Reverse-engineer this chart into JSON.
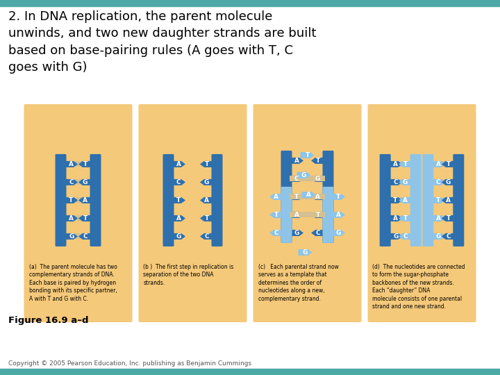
{
  "title": "2. In DNA replication, the parent molecule\nunwinds, and two new daughter strands are built\nbased on base-pairing rules (A goes with T, C\ngoes with G)",
  "figure_label": "Figure 16.9 a–d",
  "copyright": "Copyright © 2005 Pearson Education, Inc. publishing as Benjamin Cummings",
  "top_bar_color": "#4fa8a8",
  "bottom_bar_color": "#4fa8a8",
  "bg_color": "#ffffff",
  "panel_bg": "#f5c97a",
  "dna_dark": "#2e6fad",
  "dna_light": "#8ec4e8",
  "rung_color": "#d4c090",
  "bases_left": [
    "A",
    "C",
    "T",
    "A",
    "G"
  ],
  "bases_right": [
    "T",
    "G",
    "A",
    "T",
    "C"
  ],
  "captions": [
    "(a)  The parent molecule has two\ncomplementary strands of DNA.\nEach base is paired by hydrogen\nbonding with its specific partner,\nA with T and G with C.",
    "(b )  The first step in replication is\nseparation of the two DNA\nstrands.",
    "(c)   Each parental strand now\nserves as a template that\ndetermines the order of\nnucleotides along a new,\ncomplementary strand.",
    "(d)  The nucleotides are connected\nto form the sugar-phosphate\nbackbones of the new strands.\nEach “daughter” DNA\nmolecule consists of one parental\nstrand and one new strand."
  ]
}
